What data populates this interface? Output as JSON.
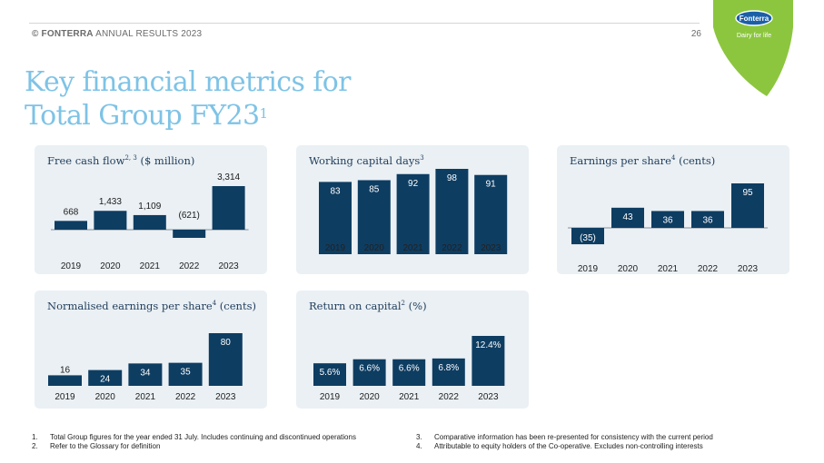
{
  "header": {
    "copyright": "© FONTERRA",
    "report": "ANNUAL RESULTS 2023",
    "page_number": "26"
  },
  "logo": {
    "brand": "Fonterra",
    "tagline": "Dairy for life",
    "colors": {
      "leaf": "#8cc63f",
      "badge": "#1b5fa8"
    }
  },
  "title": {
    "line1": "Key financial metrics for",
    "line2": "Total Group FY23",
    "sup": "1"
  },
  "colors": {
    "bar": "#0e3d62",
    "panel": "#eaf0f4",
    "title": "#7ec3e6"
  },
  "chart_data": [
    {
      "type": "bar",
      "title": "Free cash flow",
      "title_sup": "2, 3",
      "title_suffix": " ($ million)",
      "categories": [
        "2019",
        "2020",
        "2021",
        "2022",
        "2023"
      ],
      "values": [
        668,
        1433,
        1109,
        -621,
        3314
      ],
      "value_labels": [
        "668",
        "1,433",
        "1,109",
        "(621)",
        "3,314"
      ],
      "label_position": "outside"
    },
    {
      "type": "bar",
      "title": "Working capital days",
      "title_sup": "3",
      "title_suffix": "",
      "categories": [
        "2019",
        "2020",
        "2021",
        "2022",
        "2023"
      ],
      "values": [
        83,
        85,
        92,
        98,
        91
      ],
      "value_labels": [
        "83",
        "85",
        "92",
        "98",
        "91"
      ],
      "label_position": "inside"
    },
    {
      "type": "bar",
      "title": "Earnings per share",
      "title_sup": "4",
      "title_suffix": " (cents)",
      "categories": [
        "2019",
        "2020",
        "2021",
        "2022",
        "2023"
      ],
      "values": [
        -35,
        43,
        36,
        36,
        95
      ],
      "value_labels": [
        "(35)",
        "43",
        "36",
        "36",
        "95"
      ],
      "label_position": "inside"
    },
    {
      "type": "bar",
      "title": "Normalised earnings per share",
      "title_sup": "4",
      "title_suffix": " (cents)",
      "categories": [
        "2019",
        "2020",
        "2021",
        "2022",
        "2023"
      ],
      "values": [
        16,
        24,
        34,
        35,
        80
      ],
      "value_labels": [
        "16",
        "24",
        "34",
        "35",
        "80"
      ],
      "label_position": "inside"
    },
    {
      "type": "bar",
      "title": "Return on capital",
      "title_sup": "2",
      "title_suffix": " (%)",
      "categories": [
        "2019",
        "2020",
        "2021",
        "2022",
        "2023"
      ],
      "values": [
        5.6,
        6.6,
        6.6,
        6.8,
        12.4
      ],
      "value_labels": [
        "5.6%",
        "6.6%",
        "6.6%",
        "6.8%",
        "12.4%"
      ],
      "label_position": "inside"
    }
  ],
  "footnotes": [
    {
      "num": "1.",
      "text": "Total Group figures for the year ended 31 July. Includes continuing and discontinued operations"
    },
    {
      "num": "2.",
      "text": "Refer to the Glossary for definition"
    },
    {
      "num": "3.",
      "text": "Comparative information has been re-presented for consistency with the current period"
    },
    {
      "num": "4.",
      "text": "Attributable to equity holders of the Co-operative. Excludes non-controlling interests"
    }
  ]
}
